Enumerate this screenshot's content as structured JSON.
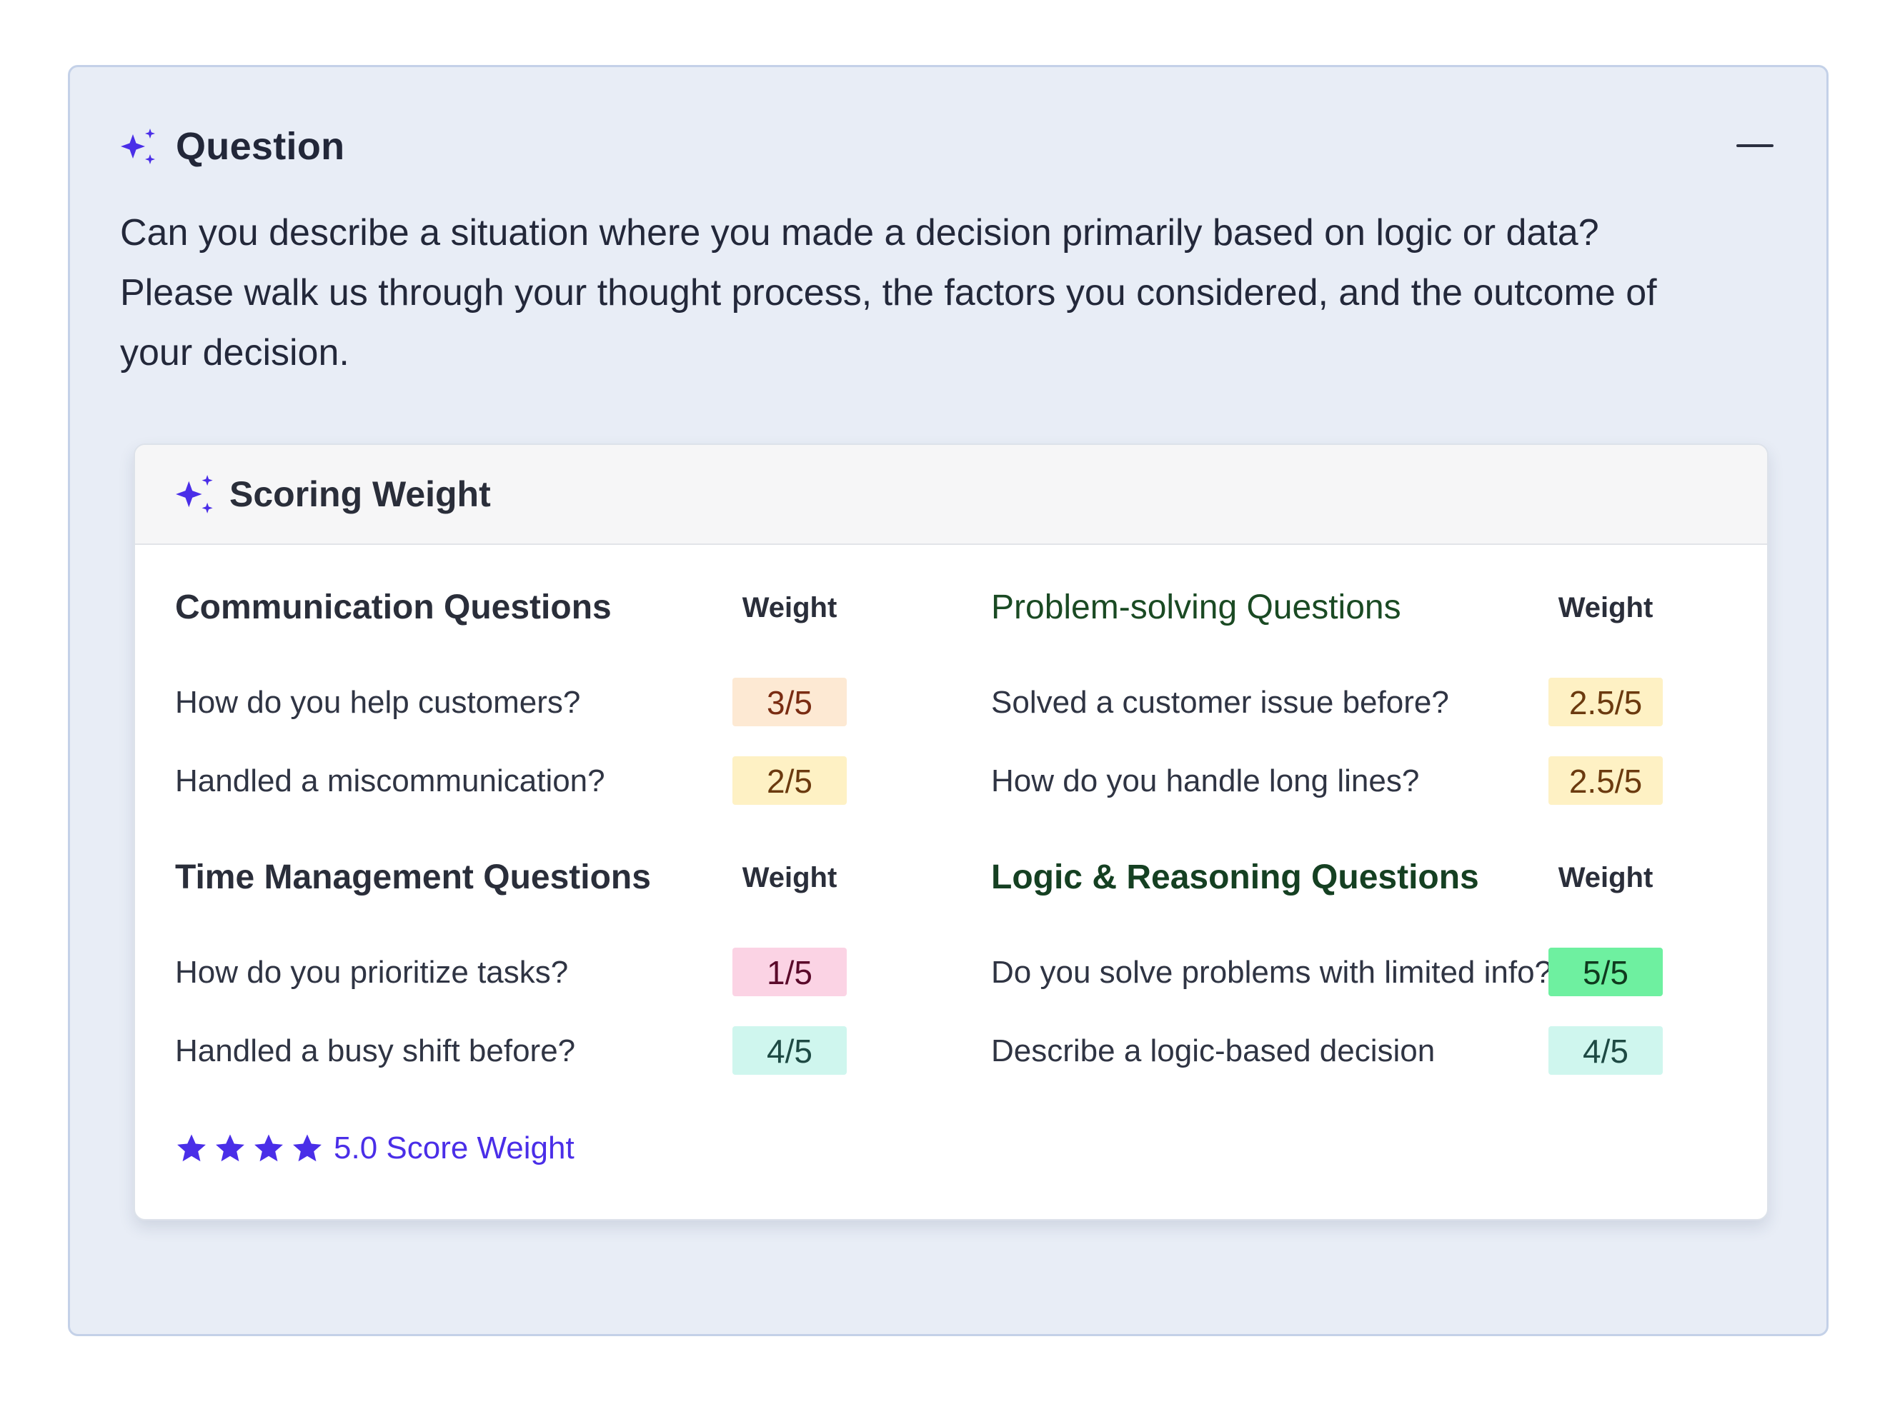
{
  "question": {
    "title": "Question",
    "text": "Can you describe a situation where you made a decision primarily based on logic or data? Please walk us through your thought process, the factors you considered, and the outcome of your decision."
  },
  "scoring": {
    "title": "Scoring Weight",
    "weight_header": "Weight",
    "sections": [
      {
        "title": "Communication Questions",
        "rows": [
          {
            "label": "How do you help customers?",
            "value": "3/5",
            "bg": "#fde9d3",
            "fg": "#7a2c12"
          },
          {
            "label": "Handled a miscommunication?",
            "value": "2/5",
            "bg": "#fef1c4",
            "fg": "#6b3a0f"
          }
        ]
      },
      {
        "title": "Problem-solving Questions",
        "rows": [
          {
            "label": "Solved a customer issue before?",
            "value": "2.5/5",
            "bg": "#fef1c4",
            "fg": "#6b3a0f"
          },
          {
            "label": "How do you handle long lines?",
            "value": "2.5/5",
            "bg": "#fef1c4",
            "fg": "#6b3a0f"
          }
        ]
      },
      {
        "title": "Time Management Questions",
        "rows": [
          {
            "label": "How do you prioritize tasks?",
            "value": "1/5",
            "bg": "#fbd3e4",
            "fg": "#5a0a2a"
          },
          {
            "label": "Handled a busy shift before?",
            "value": "4/5",
            "bg": "#cff6ee",
            "fg": "#1e4a44"
          }
        ]
      },
      {
        "title": "Logic & Reasoning Questions",
        "rows": [
          {
            "label": "Do you solve problems with limited info?",
            "value": "5/5",
            "bg": "#6ef0a0",
            "fg": "#0f3a1e"
          },
          {
            "label": "Describe a logic-based decision",
            "value": "4/5",
            "bg": "#cff6ee",
            "fg": "#1e4a44"
          }
        ]
      }
    ],
    "footer": {
      "stars": 4,
      "text": "5.0 Score Weight"
    }
  },
  "colors": {
    "accent": "#4a2ee8"
  }
}
